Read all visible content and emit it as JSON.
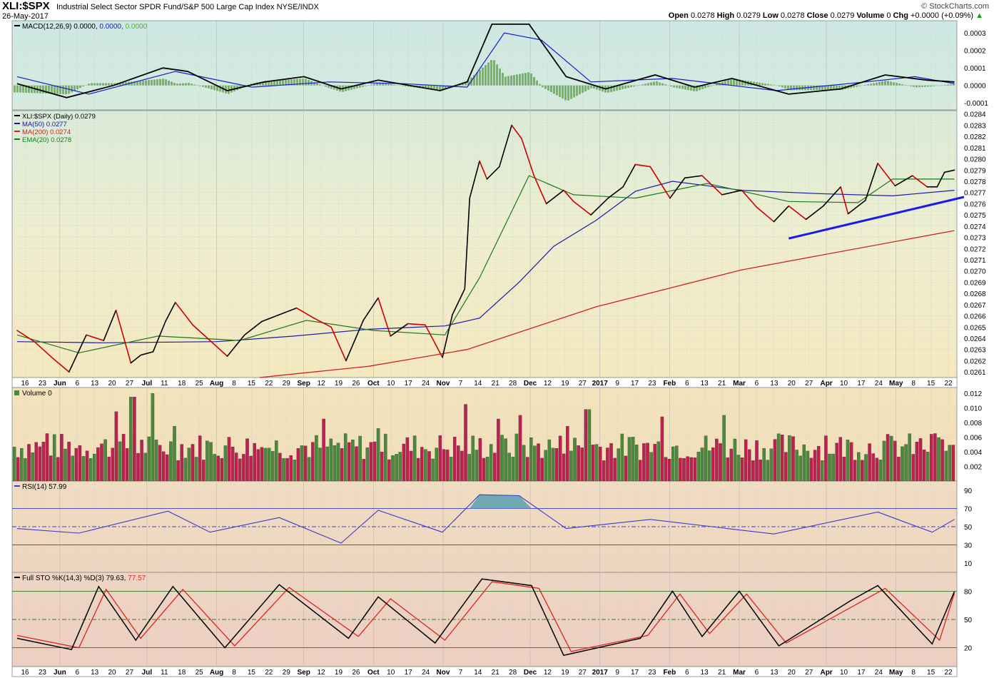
{
  "header": {
    "symbol": "XLI:$SPX",
    "description": "Industrial Select Sector SPDR Fund/S&P 500 Large Cap Index NYSE/INDX",
    "date": "26-May-2017",
    "watermark": "© StockCharts.com",
    "quote": [
      {
        "label": "Open",
        "value": "0.0278"
      },
      {
        "label": "High",
        "value": "0.0279"
      },
      {
        "label": "Low",
        "value": "0.0278"
      },
      {
        "label": "Close",
        "value": "0.0279"
      },
      {
        "label": "Volume",
        "value": "0"
      },
      {
        "label": "Chg",
        "value": "+0.0000 (+0.09%)"
      }
    ],
    "chg_arrow": "▲"
  },
  "legends": {
    "macd": {
      "name": "MACD(12,26,9)",
      "v1": "0.0000",
      "v2": "0.0000",
      "v3": "0.0000"
    },
    "price": [
      {
        "text": "XLI:$SPX (Daily) 0.0279",
        "color": "#000000"
      },
      {
        "text": "MA(50) 0.0277",
        "color": "#1a1aa8"
      },
      {
        "text": "MA(200) 0.0274",
        "color": "#cc2222"
      },
      {
        "text": "EMA(20) 0.0278",
        "color": "#1a7a1a"
      }
    ],
    "volume": "Volume 0",
    "rsi": "RSI(14) 57.99",
    "sto": {
      "name": "Full STO %K(14,3) %D(3)",
      "k": "79.63",
      "d": "77.57"
    }
  },
  "axis_labels": {
    "macd": [
      "0.0003",
      "0.0002",
      "0.0001",
      "0.0000",
      "-0.0001"
    ],
    "price": [
      "0.0284",
      "0.0283",
      "0.0282",
      "0.0281",
      "0.0280",
      "0.0279",
      "0.0278",
      "0.0277",
      "0.0276",
      "0.0275",
      "0.0274",
      "0.0273",
      "0.0272",
      "0.0271",
      "0.0270",
      "0.0269",
      "0.0268",
      "0.0267",
      "0.0266",
      "0.0265",
      "0.0264",
      "0.0263",
      "0.0262",
      "0.0261"
    ],
    "volume": [
      "0.012",
      "0.010",
      "0.008",
      "0.006",
      "0.004",
      "0.002"
    ],
    "rsi": [
      "90",
      "70",
      "50",
      "30",
      "10"
    ],
    "sto": [
      "80",
      "50",
      "20"
    ]
  },
  "date_ticks": [
    {
      "label": "16",
      "bold": false
    },
    {
      "label": "23",
      "bold": false
    },
    {
      "label": "Jun",
      "bold": true
    },
    {
      "label": "6",
      "bold": false
    },
    {
      "label": "13",
      "bold": false
    },
    {
      "label": "20",
      "bold": false
    },
    {
      "label": "27",
      "bold": false
    },
    {
      "label": "Jul",
      "bold": true
    },
    {
      "label": "11",
      "bold": false
    },
    {
      "label": "18",
      "bold": false
    },
    {
      "label": "25",
      "bold": false
    },
    {
      "label": "Aug",
      "bold": true
    },
    {
      "label": "8",
      "bold": false
    },
    {
      "label": "15",
      "bold": false
    },
    {
      "label": "22",
      "bold": false
    },
    {
      "label": "29",
      "bold": false
    },
    {
      "label": "Sep",
      "bold": true
    },
    {
      "label": "12",
      "bold": false
    },
    {
      "label": "19",
      "bold": false
    },
    {
      "label": "26",
      "bold": false
    },
    {
      "label": "Oct",
      "bold": true
    },
    {
      "label": "10",
      "bold": false
    },
    {
      "label": "17",
      "bold": false
    },
    {
      "label": "24",
      "bold": false
    },
    {
      "label": "Nov",
      "bold": true
    },
    {
      "label": "7",
      "bold": false
    },
    {
      "label": "14",
      "bold": false
    },
    {
      "label": "21",
      "bold": false
    },
    {
      "label": "28",
      "bold": false
    },
    {
      "label": "Dec",
      "bold": true
    },
    {
      "label": "12",
      "bold": false
    },
    {
      "label": "19",
      "bold": false
    },
    {
      "label": "27",
      "bold": false
    },
    {
      "label": "2017",
      "bold": true
    },
    {
      "label": "9",
      "bold": false
    },
    {
      "label": "17",
      "bold": false
    },
    {
      "label": "23",
      "bold": false
    },
    {
      "label": "Feb",
      "bold": true
    },
    {
      "label": "6",
      "bold": false
    },
    {
      "label": "13",
      "bold": false
    },
    {
      "label": "21",
      "bold": false
    },
    {
      "label": "Mar",
      "bold": true
    },
    {
      "label": "6",
      "bold": false
    },
    {
      "label": "13",
      "bold": false
    },
    {
      "label": "20",
      "bold": false
    },
    {
      "label": "27",
      "bold": false
    },
    {
      "label": "Apr",
      "bold": true
    },
    {
      "label": "10",
      "bold": false
    },
    {
      "label": "17",
      "bold": false
    },
    {
      "label": "24",
      "bold": false
    },
    {
      "label": "May",
      "bold": true
    },
    {
      "label": "8",
      "bold": false
    },
    {
      "label": "15",
      "bold": false
    },
    {
      "label": "22",
      "bold": false
    }
  ],
  "colors": {
    "price_line_up": "#000000",
    "price_line_down": "#cc0000",
    "ma50": "#1a1aa8",
    "ma200": "#cc2222",
    "ema20": "#1a7a1a",
    "trendline": "#1a1aee",
    "volume_up": "#4a8a3a",
    "volume_down": "#c02050",
    "rsi_line": "#3a3acc",
    "sto_k": "#000000",
    "sto_d": "#dd2222",
    "macd_line": "#000000",
    "macd_signal": "#1a1ad0",
    "macd_hist": "#5aaa40"
  },
  "chart_data": {
    "type": "line",
    "x_range": [
      "2016-05-16",
      "2017-05-26"
    ],
    "price": {
      "ylim": [
        0.02605,
        0.02843
      ],
      "close": [
        [
          "2016-05-12",
          0.02647
        ],
        [
          "2016-05-19",
          0.02637
        ],
        [
          "2016-05-26",
          0.02623
        ],
        [
          "2016-06-02",
          0.0261
        ],
        [
          "2016-06-09",
          0.02643
        ],
        [
          "2016-06-16",
          0.02638
        ],
        [
          "2016-06-21",
          0.02665
        ],
        [
          "2016-06-27",
          0.02618
        ],
        [
          "2016-07-01",
          0.02625
        ],
        [
          "2016-07-06",
          0.02628
        ],
        [
          "2016-07-11",
          0.02655
        ],
        [
          "2016-07-15",
          0.02672
        ],
        [
          "2016-07-22",
          0.02652
        ],
        [
          "2016-07-29",
          0.02638
        ],
        [
          "2016-08-05",
          0.02624
        ],
        [
          "2016-08-12",
          0.02643
        ],
        [
          "2016-08-19",
          0.02655
        ],
        [
          "2016-08-26",
          0.02661
        ],
        [
          "2016-09-02",
          0.02667
        ],
        [
          "2016-09-09",
          0.02658
        ],
        [
          "2016-09-16",
          0.0265
        ],
        [
          "2016-09-22",
          0.0262
        ],
        [
          "2016-09-29",
          0.02656
        ],
        [
          "2016-10-05",
          0.02676
        ],
        [
          "2016-10-10",
          0.02642
        ],
        [
          "2016-10-17",
          0.02653
        ],
        [
          "2016-10-24",
          0.02652
        ],
        [
          "2016-10-31",
          0.02623
        ],
        [
          "2016-11-04",
          0.02661
        ],
        [
          "2016-11-09",
          0.02684
        ],
        [
          "2016-11-11",
          0.02765
        ],
        [
          "2016-11-15",
          0.02798
        ],
        [
          "2016-11-18",
          0.02782
        ],
        [
          "2016-11-23",
          0.02793
        ],
        [
          "2016-11-28",
          0.0283
        ],
        [
          "2016-12-02",
          0.02818
        ],
        [
          "2016-12-07",
          0.02785
        ],
        [
          "2016-12-12",
          0.0276
        ],
        [
          "2016-12-19",
          0.02772
        ],
        [
          "2016-12-23",
          0.02762
        ],
        [
          "2016-12-30",
          0.0275
        ],
        [
          "2017-01-06",
          0.02765
        ],
        [
          "2017-01-12",
          0.02775
        ],
        [
          "2017-01-17",
          0.02795
        ],
        [
          "2017-01-23",
          0.02793
        ],
        [
          "2017-01-31",
          0.02765
        ],
        [
          "2017-02-06",
          0.02783
        ],
        [
          "2017-02-13",
          0.02785
        ],
        [
          "2017-02-21",
          0.02768
        ],
        [
          "2017-03-01",
          0.02772
        ],
        [
          "2017-03-07",
          0.02757
        ],
        [
          "2017-03-14",
          0.02744
        ],
        [
          "2017-03-20",
          0.02758
        ],
        [
          "2017-03-27",
          0.02746
        ],
        [
          "2017-04-03",
          0.02758
        ],
        [
          "2017-04-10",
          0.02775
        ],
        [
          "2017-04-13",
          0.02751
        ],
        [
          "2017-04-20",
          0.02763
        ],
        [
          "2017-04-25",
          0.02796
        ],
        [
          "2017-05-02",
          0.02776
        ],
        [
          "2017-05-09",
          0.02785
        ],
        [
          "2017-05-15",
          0.02775
        ],
        [
          "2017-05-19",
          0.02775
        ],
        [
          "2017-05-22",
          0.02788
        ],
        [
          "2017-05-26",
          0.0279
        ]
      ],
      "ma50": [
        [
          "2016-05-12",
          0.02637
        ],
        [
          "2016-06-15",
          0.02636
        ],
        [
          "2016-08-01",
          0.02637
        ],
        [
          "2016-09-01",
          0.02642
        ],
        [
          "2016-10-01",
          0.02648
        ],
        [
          "2016-11-01",
          0.02651
        ],
        [
          "2016-11-15",
          0.02658
        ],
        [
          "2016-12-01",
          0.0269
        ],
        [
          "2016-12-15",
          0.02722
        ],
        [
          "2017-01-01",
          0.02745
        ],
        [
          "2017-01-17",
          0.02771
        ],
        [
          "2017-02-01",
          0.0278
        ],
        [
          "2017-03-01",
          0.02772
        ],
        [
          "2017-04-01",
          0.02769
        ],
        [
          "2017-05-01",
          0.02767
        ],
        [
          "2017-05-26",
          0.02772
        ]
      ],
      "ema20": [
        [
          "2016-05-12",
          0.02643
        ],
        [
          "2016-06-06",
          0.02627
        ],
        [
          "2016-07-08",
          0.02642
        ],
        [
          "2016-08-10",
          0.02638
        ],
        [
          "2016-09-06",
          0.02656
        ],
        [
          "2016-10-03",
          0.02647
        ],
        [
          "2016-11-01",
          0.02643
        ],
        [
          "2016-11-15",
          0.02694
        ],
        [
          "2016-12-05",
          0.02785
        ],
        [
          "2016-12-23",
          0.02768
        ],
        [
          "2017-01-17",
          0.02765
        ],
        [
          "2017-02-15",
          0.02778
        ],
        [
          "2017-03-20",
          0.02762
        ],
        [
          "2017-04-17",
          0.02761
        ],
        [
          "2017-05-01",
          0.02782
        ],
        [
          "2017-05-26",
          0.02782
        ]
      ],
      "ma200": [
        [
          "2016-08-18",
          0.02605
        ],
        [
          "2016-10-01",
          0.02615
        ],
        [
          "2016-11-10",
          0.0263
        ],
        [
          "2017-01-01",
          0.02668
        ],
        [
          "2017-03-01",
          0.02701
        ],
        [
          "2017-05-26",
          0.02736
        ]
      ],
      "trendline": [
        [
          "2017-03-20",
          0.02729
        ],
        [
          "2017-05-30",
          0.02766
        ]
      ]
    },
    "macd": {
      "ylim": [
        -0.00014,
        0.00037
      ],
      "macd": [
        [
          "2016-05-12",
          1e-05
        ],
        [
          "2016-06-01",
          -7e-05
        ],
        [
          "2016-06-20",
          0.0
        ],
        [
          "2016-07-10",
          0.0001
        ],
        [
          "2016-07-20",
          8e-05
        ],
        [
          "2016-08-05",
          -3e-05
        ],
        [
          "2016-08-20",
          2e-05
        ],
        [
          "2016-09-05",
          5e-05
        ],
        [
          "2016-09-20",
          -2e-05
        ],
        [
          "2016-10-05",
          3e-05
        ],
        [
          "2016-10-30",
          -3e-05
        ],
        [
          "2016-11-10",
          2e-05
        ],
        [
          "2016-11-20",
          0.00035
        ],
        [
          "2016-12-05",
          0.00035
        ],
        [
          "2016-12-20",
          5e-05
        ],
        [
          "2017-01-05",
          -2e-05
        ],
        [
          "2017-01-25",
          6e-05
        ],
        [
          "2017-02-10",
          -1e-05
        ],
        [
          "2017-02-25",
          4e-05
        ],
        [
          "2017-03-20",
          -5e-05
        ],
        [
          "2017-04-10",
          -2e-05
        ],
        [
          "2017-04-28",
          6e-05
        ],
        [
          "2017-05-15",
          3e-05
        ],
        [
          "2017-05-26",
          2e-05
        ]
      ],
      "signal": [
        [
          "2016-05-12",
          5e-05
        ],
        [
          "2016-06-10",
          -5e-05
        ],
        [
          "2016-07-15",
          8e-05
        ],
        [
          "2016-08-15",
          -1e-05
        ],
        [
          "2016-09-15",
          2e-05
        ],
        [
          "2016-10-15",
          1e-05
        ],
        [
          "2016-11-10",
          -1e-05
        ],
        [
          "2016-11-25",
          0.0003
        ],
        [
          "2016-12-10",
          0.00026
        ],
        [
          "2016-12-30",
          2e-05
        ],
        [
          "2017-02-01",
          4e-05
        ],
        [
          "2017-03-15",
          -3e-05
        ],
        [
          "2017-04-20",
          2e-05
        ],
        [
          "2017-05-10",
          5e-05
        ],
        [
          "2017-05-26",
          1e-05
        ]
      ]
    },
    "volume": {
      "ylim": [
        0,
        0.0128
      ],
      "bars": [
        [
          "2016-05-23",
          0.0065
        ],
        [
          "2016-06-20",
          0.0095
        ],
        [
          "2016-06-27",
          0.0115
        ],
        [
          "2016-07-05",
          0.012
        ],
        [
          "2016-07-14",
          0.0075
        ],
        [
          "2016-08-20",
          0.0045
        ],
        [
          "2016-09-12",
          0.0085
        ],
        [
          "2016-10-05",
          0.0072
        ],
        [
          "2016-11-09",
          0.0105
        ],
        [
          "2016-11-22",
          0.0085
        ],
        [
          "2016-12-01",
          0.009
        ],
        [
          "2016-12-20",
          0.0075
        ],
        [
          "2016-12-28",
          0.0098
        ],
        [
          "2017-01-27",
          0.0088
        ],
        [
          "2017-02-21",
          0.009
        ],
        [
          "2017-04-03",
          0.0062
        ],
        [
          "2017-05-17",
          0.0065
        ],
        [
          "2017-05-26",
          0.0035
        ]
      ]
    },
    "rsi": {
      "ylim": [
        0,
        100
      ],
      "levels": [
        70,
        50,
        30
      ],
      "values": [
        [
          "2016-05-12",
          48
        ],
        [
          "2016-06-06",
          43
        ],
        [
          "2016-07-12",
          67
        ],
        [
          "2016-07-29",
          44
        ],
        [
          "2016-08-26",
          60
        ],
        [
          "2016-09-20",
          32
        ],
        [
          "2016-10-05",
          68
        ],
        [
          "2016-10-31",
          44
        ],
        [
          "2016-11-15",
          85
        ],
        [
          "2016-12-01",
          84
        ],
        [
          "2016-12-20",
          48
        ],
        [
          "2017-01-23",
          58
        ],
        [
          "2017-03-14",
          42
        ],
        [
          "2017-04-25",
          66
        ],
        [
          "2017-05-17",
          44
        ],
        [
          "2017-05-26",
          58
        ]
      ]
    },
    "sto": {
      "ylim": [
        0,
        100
      ],
      "levels": [
        80,
        50,
        20
      ],
      "k": [
        [
          "2016-05-12",
          30
        ],
        [
          "2016-06-03",
          18
        ],
        [
          "2016-06-14",
          85
        ],
        [
          "2016-06-29",
          28
        ],
        [
          "2016-07-14",
          85
        ],
        [
          "2016-08-04",
          20
        ],
        [
          "2016-08-26",
          87
        ],
        [
          "2016-09-23",
          30
        ],
        [
          "2016-10-05",
          74
        ],
        [
          "2016-10-28",
          25
        ],
        [
          "2016-11-16",
          93
        ],
        [
          "2016-12-06",
          86
        ],
        [
          "2016-12-19",
          12
        ],
        [
          "2017-01-19",
          30
        ],
        [
          "2017-02-01",
          80
        ],
        [
          "2017-02-13",
          32
        ],
        [
          "2017-02-28",
          80
        ],
        [
          "2017-03-16",
          22
        ],
        [
          "2017-04-14",
          70
        ],
        [
          "2017-04-25",
          86
        ],
        [
          "2017-05-17",
          24
        ],
        [
          "2017-05-26",
          79.63
        ]
      ],
      "d": [
        [
          "2016-05-12",
          33
        ],
        [
          "2016-06-06",
          20
        ],
        [
          "2016-06-17",
          82
        ],
        [
          "2016-07-01",
          30
        ],
        [
          "2016-07-18",
          82
        ],
        [
          "2016-08-08",
          22
        ],
        [
          "2016-08-30",
          84
        ],
        [
          "2016-09-27",
          32
        ],
        [
          "2016-10-10",
          72
        ],
        [
          "2016-11-01",
          28
        ],
        [
          "2016-11-20",
          90
        ],
        [
          "2016-12-09",
          83
        ],
        [
          "2016-12-22",
          16
        ],
        [
          "2017-01-22",
          33
        ],
        [
          "2017-02-04",
          77
        ],
        [
          "2017-02-16",
          35
        ],
        [
          "2017-03-03",
          77
        ],
        [
          "2017-03-19",
          25
        ],
        [
          "2017-04-17",
          67
        ],
        [
          "2017-04-28",
          83
        ],
        [
          "2017-05-20",
          28
        ],
        [
          "2017-05-26",
          77.57
        ]
      ]
    }
  }
}
